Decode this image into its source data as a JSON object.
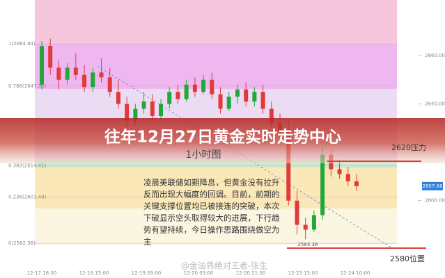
{
  "chart_data": {
    "type": "candlestick",
    "title": "往年12月27日黄金实时走势中心",
    "subtitle": "1小时图",
    "up_color": "#22a83a",
    "down_color": "#e23a3a",
    "ohlc": [
      [
        2648,
        2666,
        2646,
        2664
      ],
      [
        2664,
        2667,
        2652,
        2655
      ],
      [
        2655,
        2658,
        2646,
        2650
      ],
      [
        2650,
        2657,
        2648,
        2655
      ],
      [
        2655,
        2661,
        2650,
        2652
      ],
      [
        2652,
        2656,
        2645,
        2647
      ],
      [
        2647,
        2655,
        2645,
        2653
      ],
      [
        2653,
        2659,
        2649,
        2651
      ],
      [
        2651,
        2655,
        2643,
        2645
      ],
      [
        2645,
        2650,
        2638,
        2640
      ],
      [
        2640,
        2643,
        2630,
        2633
      ],
      [
        2633,
        2640,
        2631,
        2638
      ],
      [
        2638,
        2645,
        2636,
        2641
      ],
      [
        2641,
        2644,
        2633,
        2635
      ],
      [
        2635,
        2642,
        2633,
        2640
      ],
      [
        2640,
        2647,
        2638,
        2645
      ],
      [
        2645,
        2648,
        2640,
        2642
      ],
      [
        2642,
        2650,
        2641,
        2648
      ],
      [
        2648,
        2651,
        2643,
        2645
      ],
      [
        2645,
        2652,
        2644,
        2650
      ],
      [
        2650,
        2653,
        2642,
        2644
      ],
      [
        2644,
        2647,
        2636,
        2638
      ],
      [
        2638,
        2645,
        2637,
        2643
      ],
      [
        2643,
        2648,
        2640,
        2646
      ],
      [
        2646,
        2649,
        2639,
        2641
      ],
      [
        2641,
        2647,
        2639,
        2645
      ],
      [
        2645,
        2648,
        2636,
        2638
      ],
      [
        2638,
        2641,
        2630,
        2632
      ],
      [
        2632,
        2636,
        2626,
        2629
      ],
      [
        2629,
        2633,
        2598,
        2600
      ],
      [
        2600,
        2604,
        2586,
        2590
      ],
      [
        2590,
        2593,
        2584,
        2588
      ],
      [
        2588,
        2596,
        2587,
        2594
      ],
      [
        2594,
        2622,
        2592,
        2619
      ],
      [
        2619,
        2621,
        2610,
        2613
      ],
      [
        2613,
        2617,
        2609,
        2611
      ],
      [
        2611,
        2614,
        2606,
        2608
      ],
      [
        2608,
        2611,
        2604,
        2606
      ]
    ],
    "ylim": [
      2579.5,
      2683
    ],
    "yticks": [
      {
        "value": 2664.84,
        "label": "1(2664.84)"
      },
      {
        "value": 2647.36,
        "label": "0.786(2647.36)"
      },
      {
        "value": 2614.41,
        "label": "0.382(2614.41)"
      },
      {
        "value": 2601.48,
        "label": "0.236(2601.48)"
      },
      {
        "value": 2582.36,
        "label": "0(2582.36)"
      }
    ],
    "y2ticks": [
      {
        "value": 2660,
        "label": "2660.00"
      },
      {
        "value": 2640,
        "label": "2640.00"
      },
      {
        "value": 2600,
        "label": "2600.00"
      }
    ],
    "x_labels": [
      "12-17 18:00",
      "12-18 15:00",
      "12-19 09:00",
      "12-20 03:00",
      "12-20 21:00",
      "12-23 15:00",
      "12-24 10:00"
    ],
    "price_label": "2607.66",
    "low_label": "2583.36",
    "resistance_label": "2620压力",
    "support_label": "2580位置",
    "note": [
      "凌晨美联储如期降息，但黄金没有拉升",
      "反而出现大幅度的回调。目前，前期的",
      "关键支撑位置均已被接连的突破，本次",
      "下破显示空头取得较大的进展，下行趋",
      "势有望持续，今日操作思路围绕做空为",
      "主"
    ],
    "watermark": "@金油界绝对王者-张生"
  }
}
